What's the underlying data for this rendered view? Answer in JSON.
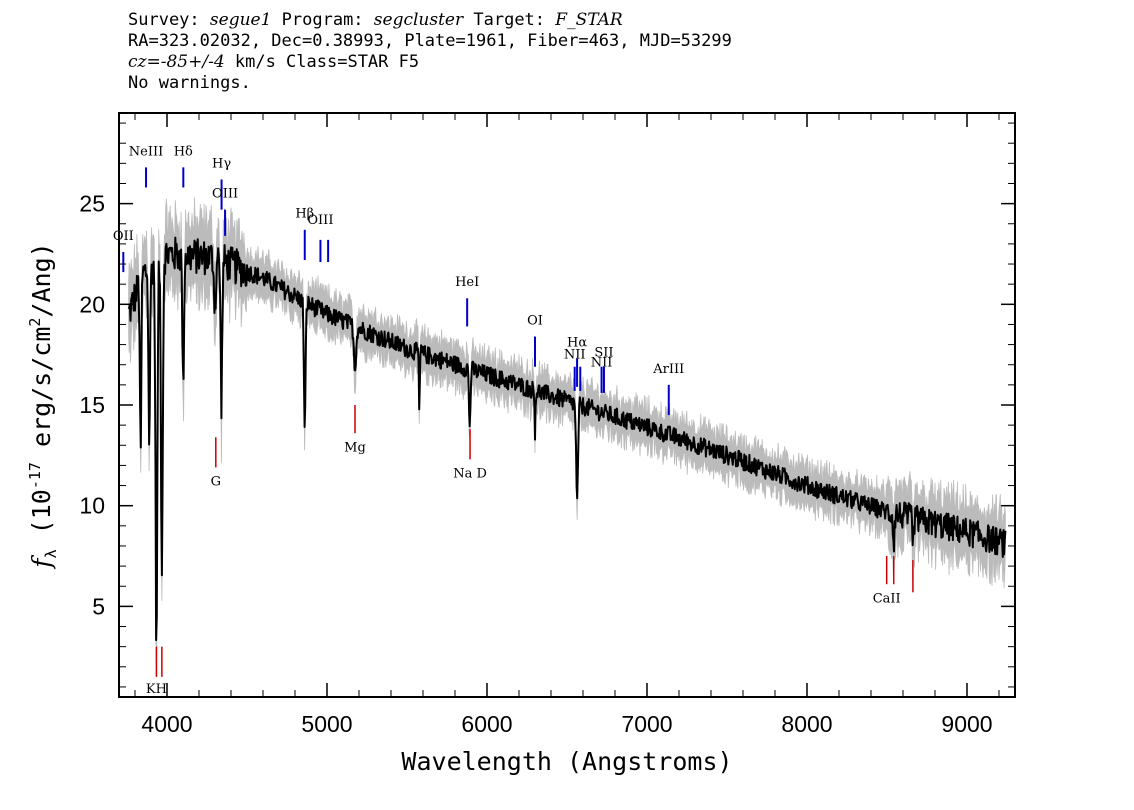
{
  "header": {
    "survey_label": "Survey:",
    "survey_value": "segue1",
    "program_label": "Program:",
    "program_value": "segcluster",
    "target_label": "Target:",
    "target_value": "F_STAR",
    "line2": "RA=323.02032, Dec=0.38993, Plate=1961, Fiber=463, MJD=53299",
    "cz_label": "cz",
    "cz_value": "=-85+/-4",
    "cz_rest": " km/s Class=STAR F5",
    "line4": "No warnings."
  },
  "chart_data": {
    "type": "line",
    "xlabel": "Wavelength (Angstroms)",
    "ylabel_sym": "f",
    "ylabel_sub": "λ",
    "ylabel_pre": " (10",
    "ylabel_exp": "-17",
    "ylabel_mid": " erg/s/cm",
    "ylabel_exp2": "2",
    "ylabel_post": "/Ang)",
    "xlim": [
      3700,
      9300
    ],
    "ylim": [
      0.5,
      29.5
    ],
    "x_ticks": [
      4000,
      5000,
      6000,
      7000,
      8000,
      9000
    ],
    "x_tick_labels": [
      "4000",
      "5000",
      "6000",
      "7000",
      "8000",
      "9000"
    ],
    "y_ticks": [
      5,
      10,
      15,
      20,
      25
    ],
    "y_tick_labels": [
      "5",
      "10",
      "15",
      "20",
      "25"
    ],
    "colors": {
      "spectrum": "#000000",
      "error": "#bbbbbb",
      "emission": "#0000cc",
      "absorption": "#cc0000"
    },
    "continuum": [
      {
        "x": 3760,
        "y": 19.5
      },
      {
        "x": 3850,
        "y": 21.5
      },
      {
        "x": 4000,
        "y": 22.5
      },
      {
        "x": 4300,
        "y": 22.3
      },
      {
        "x": 4600,
        "y": 21.3
      },
      {
        "x": 5000,
        "y": 19.5
      },
      {
        "x": 5500,
        "y": 17.8
      },
      {
        "x": 6000,
        "y": 16.5
      },
      {
        "x": 6500,
        "y": 15.2
      },
      {
        "x": 7000,
        "y": 13.9
      },
      {
        "x": 7500,
        "y": 12.5
      },
      {
        "x": 8000,
        "y": 11.0
      },
      {
        "x": 8500,
        "y": 9.7
      },
      {
        "x": 9000,
        "y": 8.7
      },
      {
        "x": 9240,
        "y": 8.1
      }
    ],
    "absorption_features": [
      {
        "x": 3835,
        "depth": 9.0,
        "width": 6
      },
      {
        "x": 3889,
        "depth": 8.5,
        "width": 7
      },
      {
        "x": 3934,
        "depth": 19.0,
        "width": 8
      },
      {
        "x": 3968,
        "depth": 15.0,
        "width": 8
      },
      {
        "x": 4101,
        "depth": 6.5,
        "width": 7
      },
      {
        "x": 4300,
        "depth": 2.5,
        "width": 8
      },
      {
        "x": 4340,
        "depth": 7.0,
        "width": 7
      },
      {
        "x": 4861,
        "depth": 6.5,
        "width": 7
      },
      {
        "x": 5175,
        "depth": 2.0,
        "width": 10
      },
      {
        "x": 5577,
        "depth": 3.0,
        "width": 4
      },
      {
        "x": 5892,
        "depth": 3.0,
        "width": 6
      },
      {
        "x": 6300,
        "depth": 2.0,
        "width": 4
      },
      {
        "x": 6563,
        "depth": 5.0,
        "width": 8
      },
      {
        "x": 8542,
        "depth": 1.5,
        "width": 6
      },
      {
        "x": 8662,
        "depth": 1.5,
        "width": 6
      }
    ],
    "emission_lines": [
      {
        "label": "OII",
        "x": 3727,
        "y0": 22.6,
        "y1": 21.6,
        "ly": 23.2
      },
      {
        "label": "NeIII",
        "x": 3869,
        "y0": 26.8,
        "y1": 25.8,
        "ly": 27.4
      },
      {
        "label": "Hδ",
        "x": 4102,
        "y0": 26.8,
        "y1": 25.8,
        "ly": 27.4
      },
      {
        "label": "Hγ",
        "x": 4341,
        "y0": 26.2,
        "y1": 24.7,
        "ly": 26.8
      },
      {
        "label": "OIII",
        "x": 4363,
        "y0": 24.7,
        "y1": 23.4,
        "ly": 25.3
      },
      {
        "label": "Hβ",
        "x": 4861,
        "y0": 23.7,
        "y1": 22.2,
        "ly": 24.3
      },
      {
        "label": "OIII",
        "x": 4959,
        "y0": 23.2,
        "y1": 22.1,
        "ly": 24.0
      },
      {
        "label": "",
        "x": 5007,
        "y0": 23.2,
        "y1": 22.1,
        "ly": 24.0
      },
      {
        "label": "HeI",
        "x": 5876,
        "y0": 20.3,
        "y1": 18.9,
        "ly": 20.9
      },
      {
        "label": "OI",
        "x": 6300,
        "y0": 18.4,
        "y1": 16.9,
        "ly": 19.0
      },
      {
        "label": "NII",
        "x": 6548,
        "y0": 16.9,
        "y1": 15.7,
        "ly": 17.3
      },
      {
        "label": "Hα",
        "x": 6563,
        "y0": 17.3,
        "y1": 15.9,
        "ly": 17.9
      },
      {
        "label": "",
        "x": 6583,
        "y0": 16.9,
        "y1": 15.7,
        "ly": 17.3
      },
      {
        "label": "NII",
        "x": 6716,
        "y0": 16.9,
        "y1": 15.6,
        "ly": 16.9
      },
      {
        "label": "SII",
        "x": 6731,
        "y0": 16.9,
        "y1": 15.6,
        "ly": 17.4
      },
      {
        "label": "ArIII",
        "x": 7136,
        "y0": 16.0,
        "y1": 14.5,
        "ly": 16.6
      }
    ],
    "absorption_lines": [
      {
        "label": "KH",
        "x": 3934,
        "y0": 3.0,
        "y1": 1.5,
        "ly": 0.7
      },
      {
        "label": "",
        "x": 3968,
        "y0": 3.0,
        "y1": 1.5,
        "ly": 0.7
      },
      {
        "label": "G",
        "x": 4305,
        "y0": 13.4,
        "y1": 11.9,
        "ly": 11.0
      },
      {
        "label": "Mg",
        "x": 5175,
        "y0": 15.0,
        "y1": 13.6,
        "ly": 12.7
      },
      {
        "label": "Na D",
        "x": 5894,
        "y0": 13.8,
        "y1": 12.3,
        "ly": 11.4
      },
      {
        "label": "CaII",
        "x": 8498,
        "y0": 7.5,
        "y1": 6.1,
        "ly": 5.2
      },
      {
        "label": "",
        "x": 8542,
        "y0": 7.5,
        "y1": 6.1,
        "ly": 5.2
      },
      {
        "label": "",
        "x": 8662,
        "y0": 7.3,
        "y1": 5.7,
        "ly": 5.2
      }
    ]
  }
}
